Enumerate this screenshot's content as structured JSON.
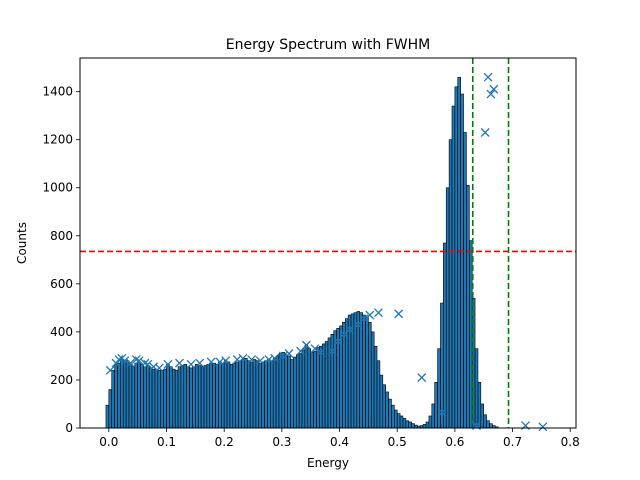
{
  "chart_data": {
    "type": "bar",
    "title": "Energy Spectrum with FWHM",
    "xlabel": "Energy",
    "ylabel": "Counts",
    "xlim": [
      -0.05,
      0.81
    ],
    "ylim": [
      0,
      1540
    ],
    "x_ticks": [
      0.0,
      0.1,
      0.2,
      0.3,
      0.4,
      0.5,
      0.6,
      0.7,
      0.8
    ],
    "x_tick_labels": [
      "0.0",
      "0.1",
      "0.2",
      "0.3",
      "0.4",
      "0.5",
      "0.6",
      "0.7",
      "0.8"
    ],
    "y_ticks": [
      0,
      200,
      400,
      600,
      800,
      1000,
      1200,
      1400
    ],
    "y_tick_labels": [
      "0",
      "200",
      "400",
      "600",
      "800",
      "1000",
      "1200",
      "1400"
    ],
    "grid": false,
    "bar_color": "#1f77b4",
    "bar_edge_color": "#000000",
    "marker_color": "#1f77b4",
    "half_max_line": {
      "y": 735,
      "color": "#ff0000",
      "style": "dashed"
    },
    "fwhm_lines": {
      "x": [
        0.631,
        0.693
      ],
      "color": "#008000",
      "style": "dashed"
    },
    "bin_width": 0.005,
    "histogram": {
      "bin_centers": [
        -0.0025,
        0.0025,
        0.0075,
        0.0125,
        0.0175,
        0.0225,
        0.0275,
        0.0325,
        0.0375,
        0.0425,
        0.0475,
        0.0525,
        0.0575,
        0.0625,
        0.0675,
        0.0725,
        0.0775,
        0.0825,
        0.0875,
        0.0925,
        0.0975,
        0.1025,
        0.1075,
        0.1125,
        0.1175,
        0.1225,
        0.1275,
        0.1325,
        0.1375,
        0.1425,
        0.1475,
        0.1525,
        0.1575,
        0.1625,
        0.1675,
        0.1725,
        0.1775,
        0.1825,
        0.1875,
        0.1925,
        0.1975,
        0.2025,
        0.2075,
        0.2125,
        0.2175,
        0.2225,
        0.2275,
        0.2325,
        0.2375,
        0.2425,
        0.2475,
        0.2525,
        0.2575,
        0.2625,
        0.2675,
        0.2725,
        0.2775,
        0.2825,
        0.2875,
        0.2925,
        0.2975,
        0.3025,
        0.3075,
        0.3125,
        0.3175,
        0.3225,
        0.3275,
        0.3325,
        0.3375,
        0.3425,
        0.3475,
        0.3525,
        0.3575,
        0.3625,
        0.3675,
        0.3725,
        0.3775,
        0.3825,
        0.3875,
        0.3925,
        0.3975,
        0.4025,
        0.4075,
        0.4125,
        0.4175,
        0.4225,
        0.4275,
        0.4325,
        0.4375,
        0.4425,
        0.4475,
        0.4525,
        0.4575,
        0.4625,
        0.4675,
        0.4725,
        0.4775,
        0.4825,
        0.4875,
        0.4925,
        0.4975,
        0.5025,
        0.5075,
        0.5125,
        0.5175,
        0.5225,
        0.5275,
        0.5325,
        0.5375,
        0.5425,
        0.5475,
        0.5525,
        0.5575,
        0.5625,
        0.5675,
        0.5725,
        0.5775,
        0.5825,
        0.5875,
        0.5925,
        0.5975,
        0.6025,
        0.6075,
        0.6125,
        0.6175,
        0.6225,
        0.6275,
        0.6325,
        0.6375,
        0.6425,
        0.6475,
        0.6525,
        0.6575,
        0.6625,
        0.6675,
        0.6725,
        0.6775,
        0.6825,
        0.6875,
        0.6925,
        0.6975,
        0.7025,
        0.7075,
        0.7125,
        0.7175,
        0.7225,
        0.7275,
        0.7325,
        0.7375,
        0.7425,
        0.7475,
        0.7525
      ],
      "counts": [
        95,
        160,
        240,
        265,
        270,
        285,
        275,
        280,
        265,
        255,
        270,
        275,
        265,
        255,
        255,
        250,
        245,
        245,
        240,
        240,
        245,
        265,
        255,
        245,
        240,
        255,
        260,
        265,
        255,
        250,
        255,
        265,
        260,
        255,
        260,
        265,
        270,
        270,
        265,
        275,
        270,
        280,
        275,
        265,
        270,
        275,
        280,
        285,
        290,
        280,
        275,
        285,
        280,
        270,
        275,
        280,
        285,
        280,
        290,
        300,
        310,
        315,
        305,
        300,
        285,
        295,
        305,
        310,
        325,
        345,
        330,
        315,
        320,
        335,
        340,
        350,
        360,
        375,
        390,
        405,
        415,
        425,
        440,
        455,
        470,
        475,
        480,
        485,
        480,
        470,
        460,
        440,
        400,
        340,
        280,
        220,
        180,
        150,
        120,
        95,
        75,
        60,
        50,
        40,
        30,
        25,
        18,
        12,
        8,
        10,
        15,
        25,
        50,
        100,
        190,
        330,
        520,
        770,
        1000,
        1200,
        1340,
        1420,
        1460,
        1390,
        1230,
        1010,
        780,
        540,
        330,
        190,
        100,
        55,
        30,
        18,
        10,
        5
      ]
    },
    "marker_points": {
      "x": [
        0.0025,
        0.0125,
        0.0175,
        0.0225,
        0.0275,
        0.0375,
        0.0475,
        0.0525,
        0.0625,
        0.0675,
        0.0775,
        0.0875,
        0.1025,
        0.1225,
        0.1425,
        0.1575,
        0.1775,
        0.1925,
        0.2025,
        0.2225,
        0.2325,
        0.2475,
        0.2625,
        0.2775,
        0.2875,
        0.3025,
        0.3125,
        0.3325,
        0.3425,
        0.3575,
        0.3675,
        0.3875,
        0.3975,
        0.4075,
        0.4175,
        0.4325,
        0.4425,
        0.4525,
        0.4675,
        0.5025,
        0.5425,
        0.5775,
        0.6375,
        0.6525,
        0.6575,
        0.6625,
        0.6675,
        0.7225,
        0.7525
      ],
      "y": [
        240,
        270,
        285,
        290,
        280,
        270,
        285,
        280,
        270,
        265,
        255,
        250,
        265,
        270,
        265,
        270,
        275,
        275,
        280,
        285,
        290,
        285,
        280,
        285,
        290,
        300,
        310,
        320,
        345,
        330,
        315,
        320,
        360,
        390,
        410,
        430,
        455,
        470,
        480,
        475,
        210,
        65,
        10,
        1230,
        1460,
        1390,
        1410,
        10,
        5
      ]
    }
  }
}
